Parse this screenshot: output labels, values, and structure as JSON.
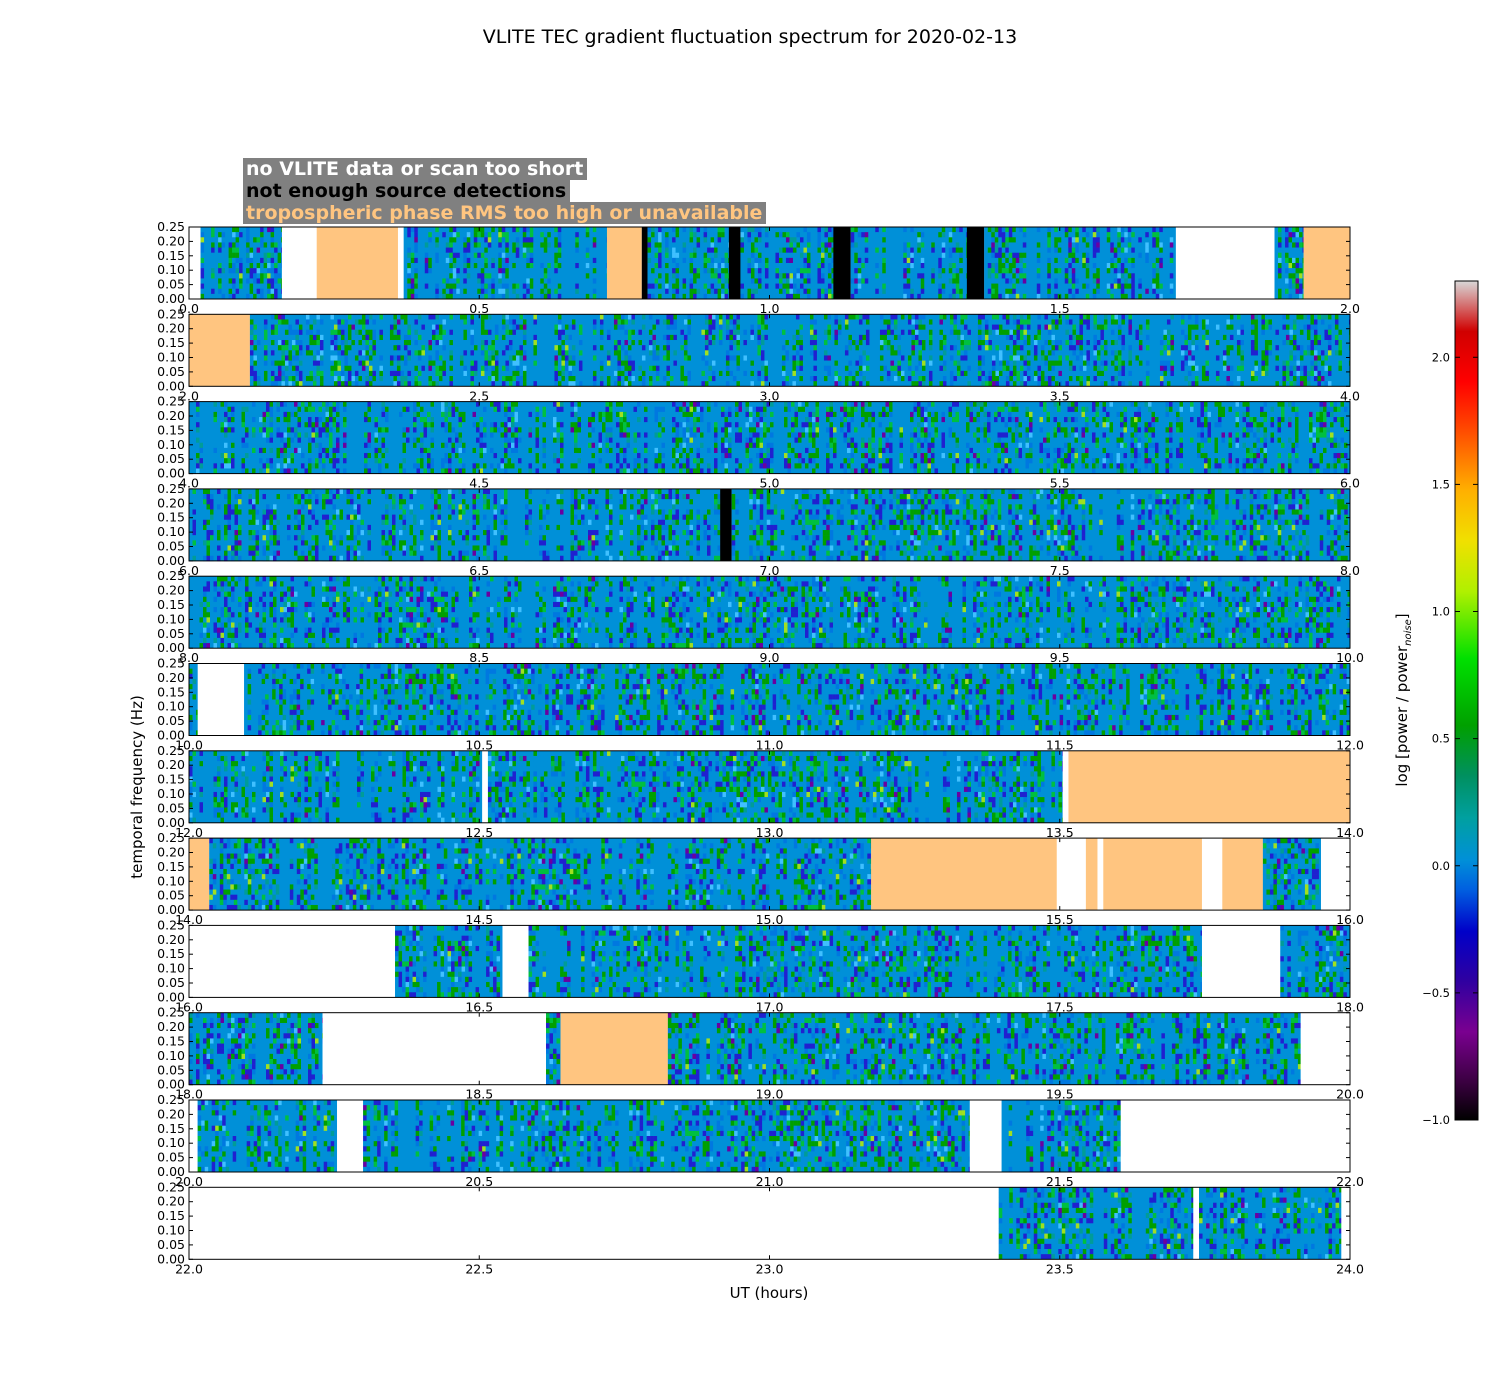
{
  "chart_data": {
    "type": "heatmap",
    "title": "VLITE TEC gradient fluctuation spectrum for 2020-02-13",
    "xlabel": "UT (hours)",
    "ylabel": "temporal frequency (Hz)",
    "ylim": [
      0,
      0.25
    ],
    "yticks": [
      "0.00",
      "0.05",
      "0.10",
      "0.15",
      "0.20",
      "0.25"
    ],
    "colorbar": {
      "label": "log [power / power",
      "label_subscript": "noise",
      "label_close": "]",
      "range": [
        -1.0,
        2.3
      ],
      "ticks": [
        {
          "value": -1.0,
          "label": "−1.0"
        },
        {
          "value": -0.5,
          "label": "−0.5"
        },
        {
          "value": 0.0,
          "label": "0.0"
        },
        {
          "value": 0.5,
          "label": "0.5"
        },
        {
          "value": 1.0,
          "label": "1.0"
        },
        {
          "value": 1.5,
          "label": "1.5"
        },
        {
          "value": 2.0,
          "label": "2.0"
        }
      ]
    },
    "legend": [
      {
        "label": "no VLITE data or scan too short",
        "color": "#ffffff"
      },
      {
        "label": "not enough source detections",
        "color": "#000000"
      },
      {
        "label": "tropospheric phase RMS too high or unavailable",
        "color": "#ffc580"
      }
    ],
    "colors": {
      "no_data": "#ffffff",
      "few_detections": "#000000",
      "tropo": "#ffc580",
      "background": "#0090d8"
    },
    "panels": [
      {
        "range": [
          0,
          2
        ],
        "xticks": [
          "0.0",
          "0.5",
          "1.0",
          "1.5",
          "2.0"
        ],
        "segments": [
          {
            "from": 0.0,
            "to": 0.02,
            "state": "none"
          },
          {
            "from": 0.02,
            "to": 0.16,
            "state": "data"
          },
          {
            "from": 0.16,
            "to": 0.22,
            "state": "none"
          },
          {
            "from": 0.22,
            "to": 0.36,
            "state": "tropo"
          },
          {
            "from": 0.36,
            "to": 0.37,
            "state": "none"
          },
          {
            "from": 0.37,
            "to": 0.72,
            "state": "data"
          },
          {
            "from": 0.72,
            "to": 0.78,
            "state": "tropo"
          },
          {
            "from": 0.78,
            "to": 0.79,
            "state": "few"
          },
          {
            "from": 0.79,
            "to": 0.93,
            "state": "data"
          },
          {
            "from": 0.93,
            "to": 0.95,
            "state": "few"
          },
          {
            "from": 0.95,
            "to": 1.11,
            "state": "data"
          },
          {
            "from": 1.11,
            "to": 1.14,
            "state": "few"
          },
          {
            "from": 1.14,
            "to": 1.34,
            "state": "data"
          },
          {
            "from": 1.34,
            "to": 1.37,
            "state": "few"
          },
          {
            "from": 1.37,
            "to": 1.7,
            "state": "data"
          },
          {
            "from": 1.7,
            "to": 1.87,
            "state": "none"
          },
          {
            "from": 1.87,
            "to": 1.92,
            "state": "data"
          },
          {
            "from": 1.92,
            "to": 2.0,
            "state": "tropo"
          }
        ]
      },
      {
        "range": [
          2,
          4
        ],
        "xticks": [
          "2.0",
          "2.5",
          "3.0",
          "3.5",
          "4.0"
        ],
        "segments": [
          {
            "from": 2.0,
            "to": 2.105,
            "state": "tropo"
          },
          {
            "from": 2.105,
            "to": 4.0,
            "state": "data"
          }
        ]
      },
      {
        "range": [
          4,
          6
        ],
        "xticks": [
          "4.0",
          "4.5",
          "5.0",
          "5.5",
          "6.0"
        ],
        "segments": [
          {
            "from": 4.0,
            "to": 6.0,
            "state": "data"
          }
        ]
      },
      {
        "range": [
          6,
          8
        ],
        "xticks": [
          "6.0",
          "6.5",
          "7.0",
          "7.5",
          "8.0"
        ],
        "segments": [
          {
            "from": 6.0,
            "to": 6.915,
            "state": "data"
          },
          {
            "from": 6.915,
            "to": 6.935,
            "state": "few"
          },
          {
            "from": 6.935,
            "to": 8.0,
            "state": "data"
          }
        ]
      },
      {
        "range": [
          8,
          10
        ],
        "xticks": [
          "8.0",
          "8.5",
          "9.0",
          "9.5",
          "10.0"
        ],
        "segments": [
          {
            "from": 8.0,
            "to": 10.0,
            "state": "data"
          }
        ]
      },
      {
        "range": [
          10,
          12
        ],
        "xticks": [
          "10.0",
          "10.5",
          "11.0",
          "11.5",
          "12.0"
        ],
        "segments": [
          {
            "from": 10.0,
            "to": 10.015,
            "state": "data"
          },
          {
            "from": 10.015,
            "to": 10.095,
            "state": "none"
          },
          {
            "from": 10.095,
            "to": 12.0,
            "state": "data"
          }
        ]
      },
      {
        "range": [
          12,
          14
        ],
        "xticks": [
          "12.0",
          "12.5",
          "13.0",
          "13.5",
          "14.0"
        ],
        "segments": [
          {
            "from": 12.0,
            "to": 12.505,
            "state": "data"
          },
          {
            "from": 12.505,
            "to": 12.515,
            "state": "none"
          },
          {
            "from": 12.515,
            "to": 13.505,
            "state": "data"
          },
          {
            "from": 13.505,
            "to": 13.515,
            "state": "none"
          },
          {
            "from": 13.515,
            "to": 14.0,
            "state": "tropo"
          }
        ]
      },
      {
        "range": [
          14,
          16
        ],
        "xticks": [
          "14.0",
          "14.5",
          "15.0",
          "15.5",
          "16.0"
        ],
        "segments": [
          {
            "from": 14.0,
            "to": 14.035,
            "state": "tropo"
          },
          {
            "from": 14.035,
            "to": 15.175,
            "state": "data"
          },
          {
            "from": 15.175,
            "to": 15.495,
            "state": "tropo"
          },
          {
            "from": 15.495,
            "to": 15.545,
            "state": "none"
          },
          {
            "from": 15.545,
            "to": 15.565,
            "state": "tropo"
          },
          {
            "from": 15.565,
            "to": 15.575,
            "state": "none"
          },
          {
            "from": 15.575,
            "to": 15.745,
            "state": "tropo"
          },
          {
            "from": 15.745,
            "to": 15.78,
            "state": "none"
          },
          {
            "from": 15.78,
            "to": 15.85,
            "state": "tropo"
          },
          {
            "from": 15.85,
            "to": 15.95,
            "state": "data"
          },
          {
            "from": 15.95,
            "to": 16.0,
            "state": "none"
          }
        ]
      },
      {
        "range": [
          16,
          18
        ],
        "xticks": [
          "16.0",
          "16.5",
          "17.0",
          "17.5",
          "18.0"
        ],
        "segments": [
          {
            "from": 16.0,
            "to": 16.355,
            "state": "none"
          },
          {
            "from": 16.355,
            "to": 16.54,
            "state": "data"
          },
          {
            "from": 16.54,
            "to": 16.585,
            "state": "none"
          },
          {
            "from": 16.585,
            "to": 17.745,
            "state": "data"
          },
          {
            "from": 17.745,
            "to": 17.88,
            "state": "none"
          },
          {
            "from": 17.88,
            "to": 18.0,
            "state": "data"
          }
        ]
      },
      {
        "range": [
          18,
          20
        ],
        "xticks": [
          "18.0",
          "18.5",
          "19.0",
          "19.5",
          "20.0"
        ],
        "segments": [
          {
            "from": 18.0,
            "to": 18.23,
            "state": "data"
          },
          {
            "from": 18.23,
            "to": 18.615,
            "state": "none"
          },
          {
            "from": 18.615,
            "to": 18.64,
            "state": "data"
          },
          {
            "from": 18.64,
            "to": 18.825,
            "state": "tropo"
          },
          {
            "from": 18.825,
            "to": 19.915,
            "state": "data"
          },
          {
            "from": 19.915,
            "to": 20.0,
            "state": "none"
          }
        ]
      },
      {
        "range": [
          20,
          22
        ],
        "xticks": [
          "20.0",
          "20.5",
          "21.0",
          "21.5",
          "22.0"
        ],
        "segments": [
          {
            "from": 20.0,
            "to": 20.015,
            "state": "none"
          },
          {
            "from": 20.015,
            "to": 20.255,
            "state": "data"
          },
          {
            "from": 20.255,
            "to": 20.3,
            "state": "none"
          },
          {
            "from": 20.3,
            "to": 21.345,
            "state": "data"
          },
          {
            "from": 21.345,
            "to": 21.4,
            "state": "none"
          },
          {
            "from": 21.4,
            "to": 21.605,
            "state": "data"
          },
          {
            "from": 21.605,
            "to": 22.0,
            "state": "none"
          }
        ]
      },
      {
        "range": [
          22,
          24
        ],
        "xticks": [
          "22.0",
          "22.5",
          "23.0",
          "23.5",
          "24.0"
        ],
        "segments": [
          {
            "from": 22.0,
            "to": 23.395,
            "state": "none"
          },
          {
            "from": 23.395,
            "to": 23.73,
            "state": "data"
          },
          {
            "from": 23.73,
            "to": 23.74,
            "state": "none"
          },
          {
            "from": 23.74,
            "to": 23.985,
            "state": "data"
          },
          {
            "from": 23.985,
            "to": 24.0,
            "state": "none"
          }
        ]
      }
    ]
  }
}
